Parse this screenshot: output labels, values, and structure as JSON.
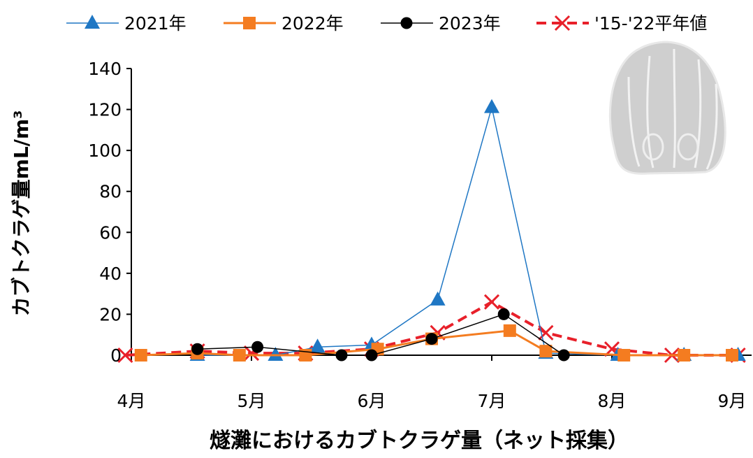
{
  "chart_data": {
    "type": "line",
    "title": "",
    "caption": "燧灘におけるカブトクラゲ量（ネット採集）",
    "xlabel": "",
    "ylabel": "カブトクラゲ量mL/m³",
    "ylim": [
      0,
      140
    ],
    "yticks": [
      0,
      20,
      40,
      60,
      80,
      100,
      120,
      140
    ],
    "xlim": [
      4,
      9
    ],
    "xticks": [
      4,
      5,
      6,
      7,
      8,
      9
    ],
    "xtick_labels": [
      "4月",
      "5月",
      "6月",
      "7月",
      "8月",
      "9月"
    ],
    "grid": false,
    "legend_position": "top",
    "series": [
      {
        "name": "2021年",
        "color": "#1f77c4",
        "marker": "triangle",
        "line": "solid-thin",
        "x": [
          4.55,
          5.2,
          5.55,
          6.0,
          6.55,
          7.0,
          7.45,
          8.05,
          8.6,
          9.05
        ],
        "values": [
          0,
          0,
          4,
          5,
          27,
          121,
          1,
          0,
          0,
          0
        ]
      },
      {
        "name": "2022年",
        "color": "#f47c20",
        "marker": "square",
        "line": "solid-thick",
        "x": [
          4.08,
          4.55,
          4.9,
          5.45,
          6.05,
          6.5,
          7.15,
          7.45,
          8.1,
          8.6,
          9.0
        ],
        "values": [
          0,
          1,
          0,
          0,
          3,
          8,
          12,
          2,
          0,
          0,
          0
        ]
      },
      {
        "name": "2023年",
        "color": "#000000",
        "marker": "circle",
        "line": "solid-thin",
        "x": [
          4.55,
          5.05,
          5.75,
          6.0,
          6.5,
          7.1,
          7.6
        ],
        "values": [
          3,
          4,
          0,
          0,
          8,
          20,
          0
        ]
      },
      {
        "name": "'15-'22平年値",
        "color": "#e8202a",
        "marker": "x",
        "line": "dashed",
        "x": [
          3.95,
          4.55,
          5.0,
          5.45,
          6.0,
          6.55,
          7.0,
          7.45,
          8.0,
          8.5,
          9.05
        ],
        "values": [
          0,
          2,
          1,
          1,
          3,
          11,
          26,
          11,
          3,
          0,
          0
        ]
      }
    ]
  }
}
